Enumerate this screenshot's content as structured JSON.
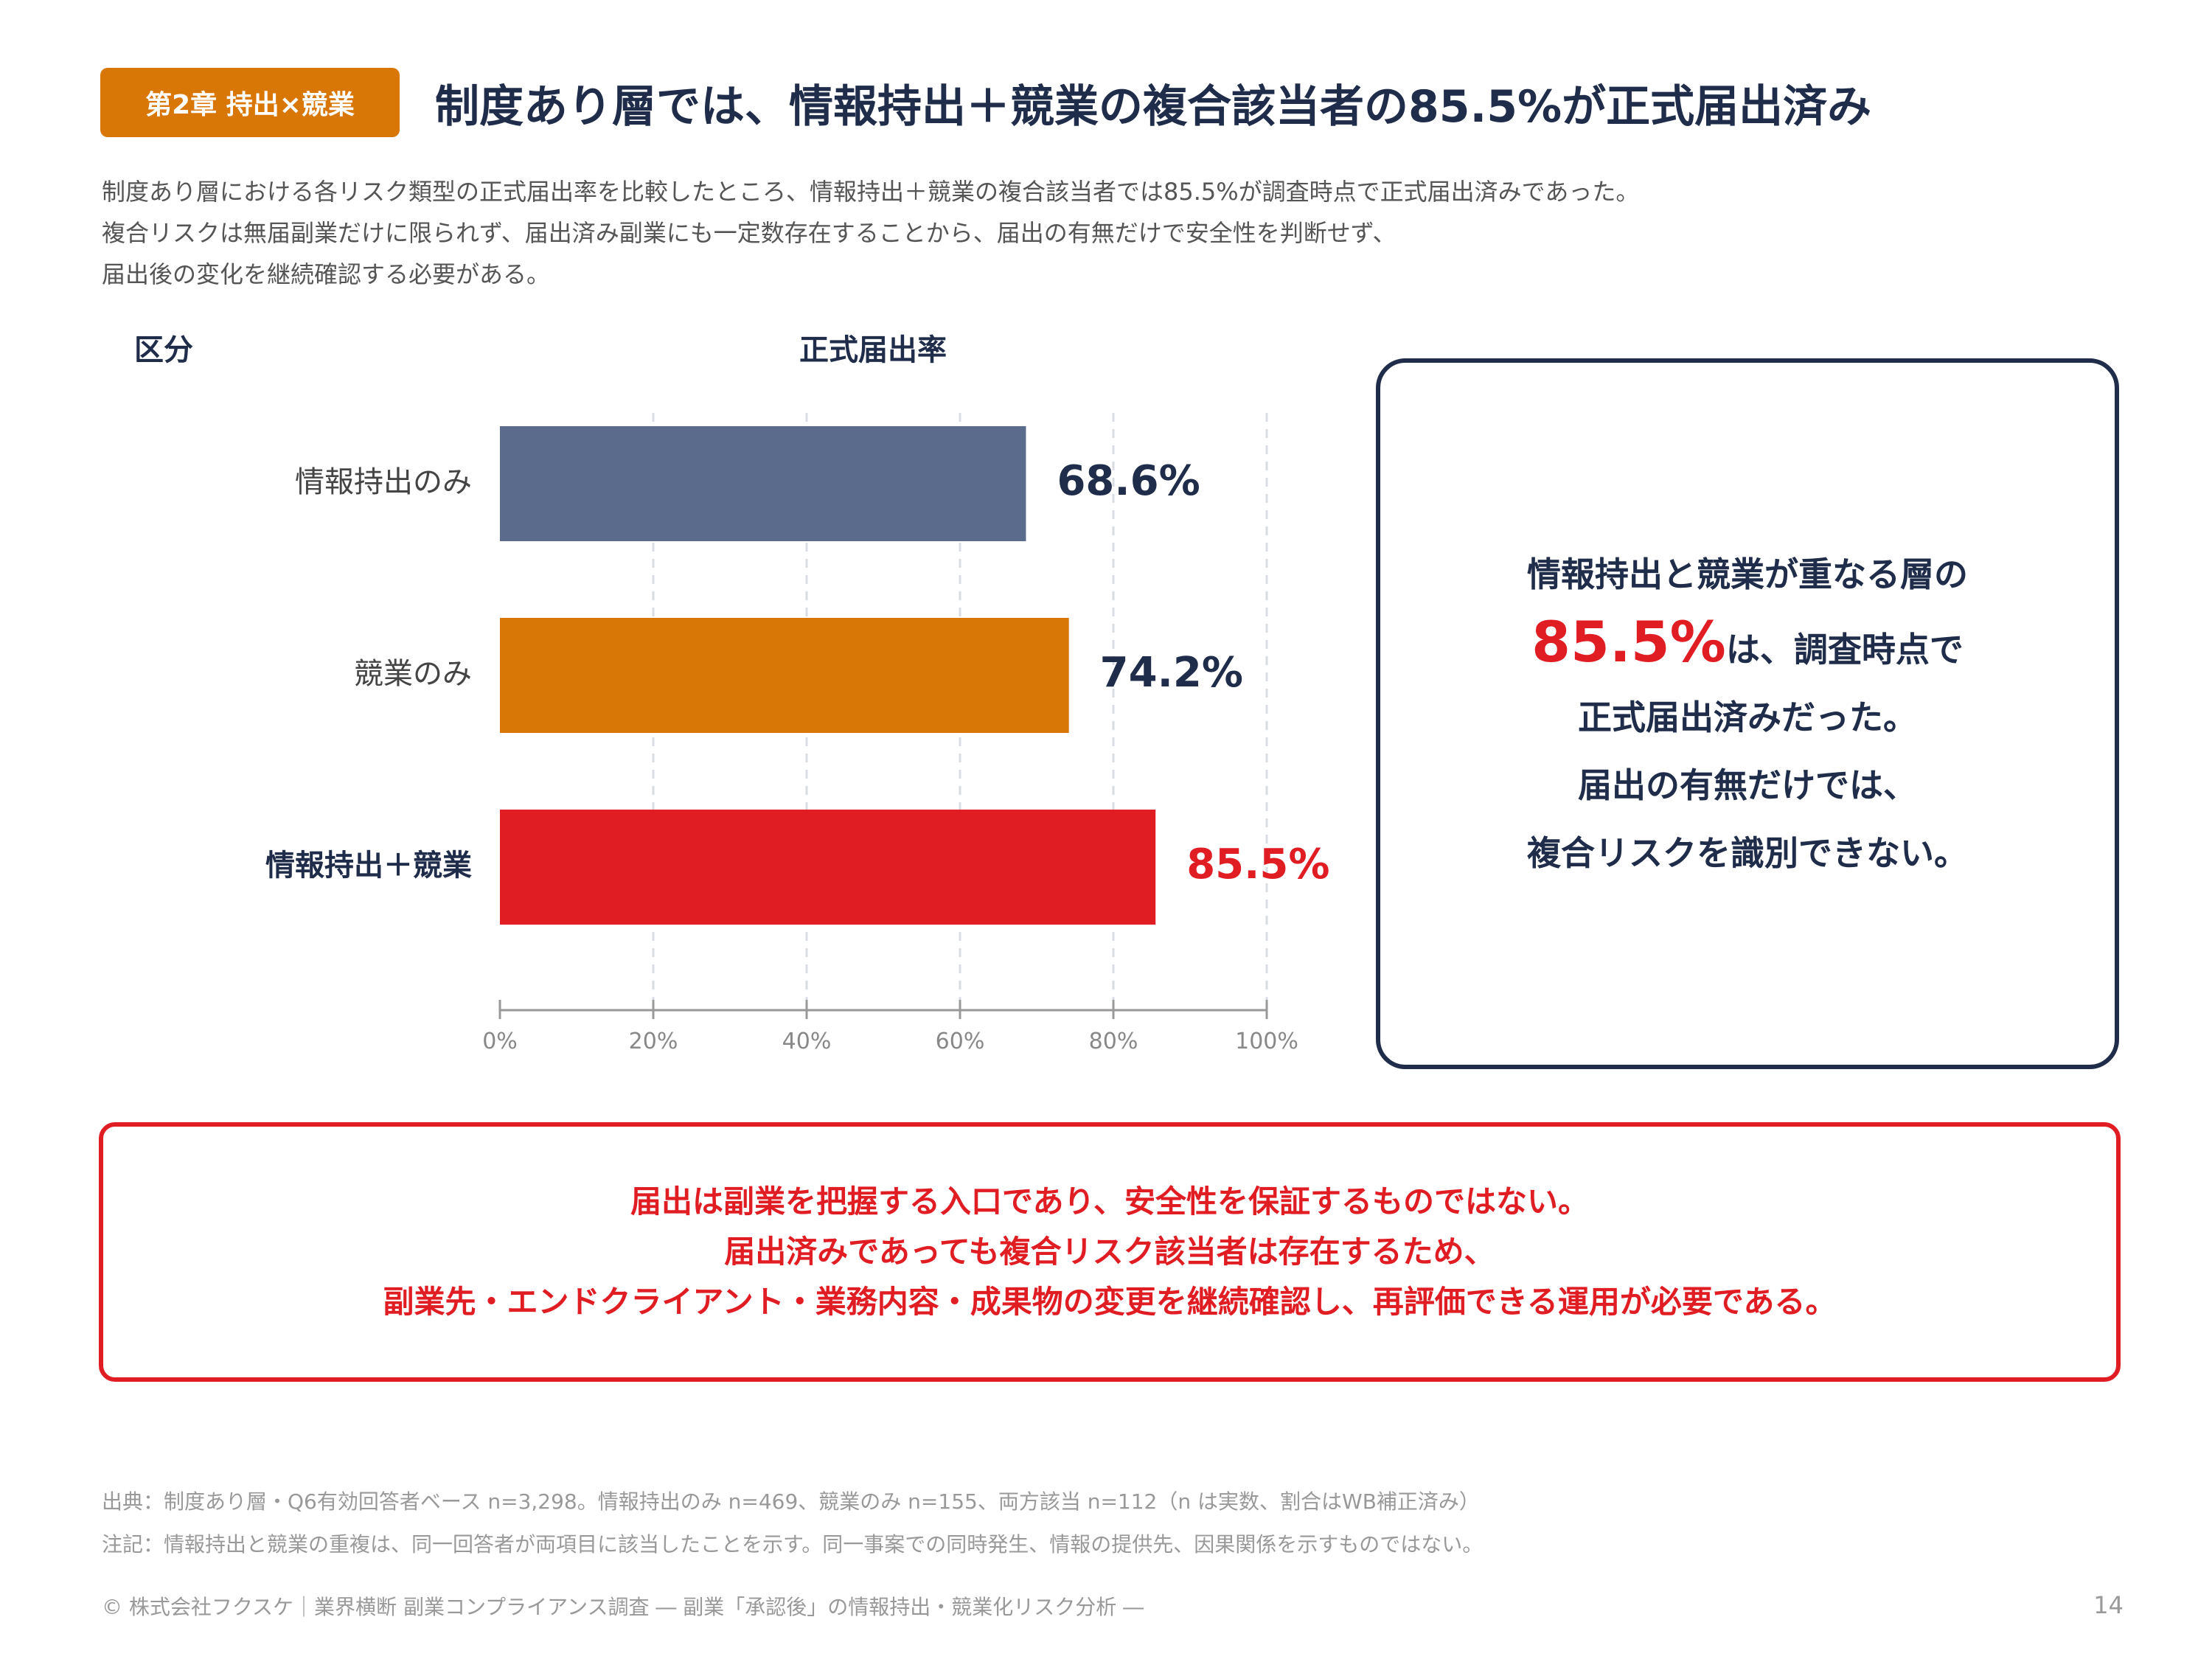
{
  "header": {
    "chapter_badge": "第2章 持出×競業",
    "title": "制度あり層では、情報持出＋競業の複合該当者の85.5%が正式届出済み"
  },
  "intro": [
    "制度あり層における各リスク類型の正式届出率を比較したところ、情報持出＋競業の複合該当者では85.5%が調査時点で正式届出済みであった。",
    "複合リスクは無届副業だけに限られず、届出済み副業にも一定数存在することから、届出の有無だけで安全性を判断せず、",
    "届出後の変化を継続確認する必要がある。"
  ],
  "table_headers": {
    "category": "区分",
    "rate": "正式届出率"
  },
  "chart_data": {
    "type": "bar",
    "orientation": "horizontal",
    "categories": [
      "情報持出のみ",
      "競業のみ",
      "情報持出＋競業"
    ],
    "values": [
      68.6,
      74.2,
      85.5
    ],
    "value_labels": [
      "68.6%",
      "74.2%",
      "85.5%"
    ],
    "colors": [
      "#5b6b8c",
      "#d97706",
      "#e11d24"
    ],
    "highlight_index": 2,
    "xlim": [
      0,
      100
    ],
    "ticks": [
      0,
      20,
      40,
      60,
      80,
      100
    ],
    "tick_labels": [
      "0%",
      "20%",
      "40%",
      "60%",
      "80%",
      "100%"
    ],
    "grid": true
  },
  "callout": {
    "line1": "情報持出と競業が重なる層の",
    "big": "85.5%",
    "line2_rest": "は、調査時点で",
    "line3": "正式届出済みだった。",
    "line4": "届出の有無だけでは、",
    "line5": "複合リスクを識別できない。"
  },
  "conclusion": [
    "届出は副業を把握する入口であり、安全性を保証するものではない。",
    "届出済みであっても複合リスク該当者は存在するため、",
    "副業先・エンドクライアント・業務内容・成果物の変更を継続確認し、再評価できる運用が必要である。"
  ],
  "notes": [
    "出典：制度あり層・Q6有効回答者ベース n=3,298。情報持出のみ n=469、競業のみ n=155、両方該当 n=112（n は実数、割合はWB補正済み）",
    "注記：情報持出と競業の重複は、同一回答者が両項目に該当したことを示す。同一事案での同時発生、情報の提供先、因果関係を示すものではない。"
  ],
  "footer": {
    "copyright": "© 株式会社フクスケ｜業界横断 副業コンプライアンス調査 ― 副業「承認後」の情報持出・競業化リスク分析 ―",
    "page_number": "14"
  },
  "colors": {
    "navy": "#1f2d4a",
    "orange": "#d97706",
    "red": "#e11d24",
    "slate": "#5b6b8c"
  }
}
